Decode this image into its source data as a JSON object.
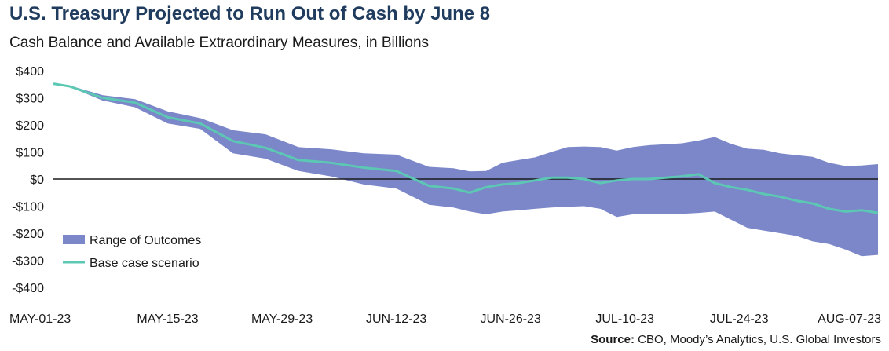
{
  "title": "U.S. Treasury Projected to Run Out of Cash by June 8",
  "subtitle": "Cash Balance and Available Extraordinary Measures, in Billions",
  "source_label": "Source:",
  "source_text": " CBO, Moody’s Analytics, U.S. Global Investors",
  "colors": {
    "range": "#7b87c9",
    "base": "#5cc8b4",
    "title": "#1f3b5e"
  },
  "chart_data": {
    "type": "area",
    "x_ticks": [
      "MAY-01-23",
      "MAY-15-23",
      "MAY-29-23",
      "JUN-12-23",
      "JUN-26-23",
      "JUL-10-23",
      "JUL-24-23",
      "AUG-07-23"
    ],
    "y_ticks": [
      "$400",
      "$300",
      "$200",
      "$100",
      "$0",
      "-$100",
      "-$200",
      "-$300",
      "-$400"
    ],
    "ylim": [
      -400,
      400
    ],
    "x_day_range": [
      0,
      101
    ],
    "legend_position": "lower-left",
    "series": [
      {
        "name": "Range of Outcomes",
        "kind": "band",
        "x_days": [
          0,
          2,
          6,
          10,
          14,
          18,
          22,
          26,
          30,
          34,
          38,
          42,
          46,
          49,
          51,
          53,
          55,
          57,
          59,
          61,
          63,
          65,
          67,
          69,
          71,
          73,
          75,
          77,
          79,
          81,
          83,
          85,
          87,
          89,
          91,
          93,
          95,
          97,
          99,
          101
        ],
        "upper": [
          352,
          345,
          310,
          295,
          250,
          225,
          180,
          165,
          118,
          110,
          95,
          90,
          45,
          40,
          28,
          30,
          60,
          70,
          80,
          100,
          118,
          120,
          118,
          105,
          118,
          125,
          128,
          132,
          142,
          155,
          130,
          112,
          108,
          95,
          88,
          82,
          60,
          48,
          50,
          55
        ],
        "lower": [
          352,
          340,
          290,
          265,
          205,
          185,
          95,
          75,
          30,
          10,
          -20,
          -35,
          -95,
          -105,
          -120,
          -130,
          -120,
          -115,
          -110,
          -105,
          -102,
          -100,
          -110,
          -140,
          -130,
          -128,
          -130,
          -128,
          -125,
          -120,
          -150,
          -180,
          -190,
          -200,
          -210,
          -230,
          -240,
          -260,
          -285,
          -280
        ]
      },
      {
        "name": "Base case scenario",
        "kind": "line",
        "x_days": [
          0,
          2,
          6,
          10,
          14,
          18,
          22,
          26,
          30,
          34,
          38,
          42,
          46,
          49,
          51,
          53,
          55,
          57,
          59,
          61,
          63,
          65,
          67,
          69,
          71,
          73,
          75,
          77,
          79,
          81,
          83,
          85,
          87,
          89,
          91,
          93,
          95,
          97,
          99,
          101
        ],
        "values": [
          352,
          342,
          300,
          282,
          228,
          205,
          140,
          115,
          70,
          60,
          42,
          30,
          -25,
          -35,
          -50,
          -30,
          -20,
          -15,
          -5,
          5,
          5,
          0,
          -15,
          -5,
          0,
          0,
          5,
          10,
          18,
          -15,
          -30,
          -40,
          -55,
          -65,
          -80,
          -90,
          -110,
          -120,
          -115,
          -125
        ]
      }
    ]
  }
}
